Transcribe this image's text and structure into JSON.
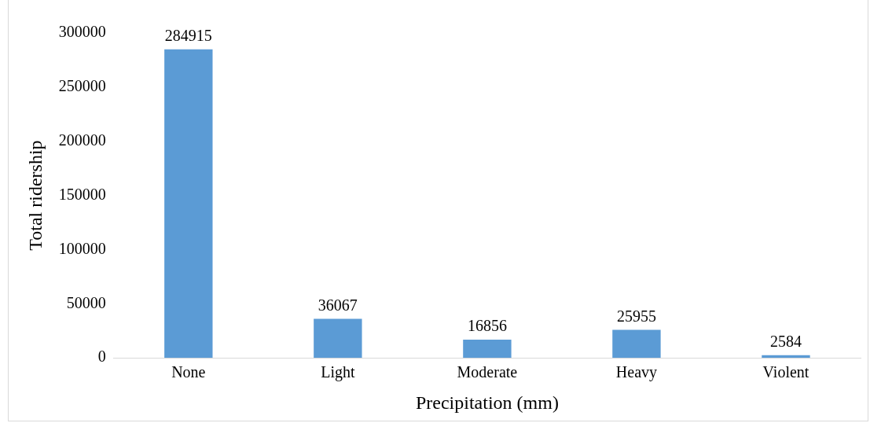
{
  "chart_data": {
    "type": "bar",
    "xlabel": "Precipitation (mm)",
    "ylabel": "Total ridership",
    "categories": [
      "None",
      "Light",
      "Moderate",
      "Heavy",
      "Violent"
    ],
    "values": [
      284915,
      36067,
      16856,
      25955,
      2584
    ],
    "color": "#5b9bd5",
    "ylim": [
      0,
      300000
    ],
    "yticks": [
      0,
      50000,
      100000,
      150000,
      200000,
      250000,
      300000
    ],
    "grid": false,
    "legend": false,
    "data_labels": true
  }
}
